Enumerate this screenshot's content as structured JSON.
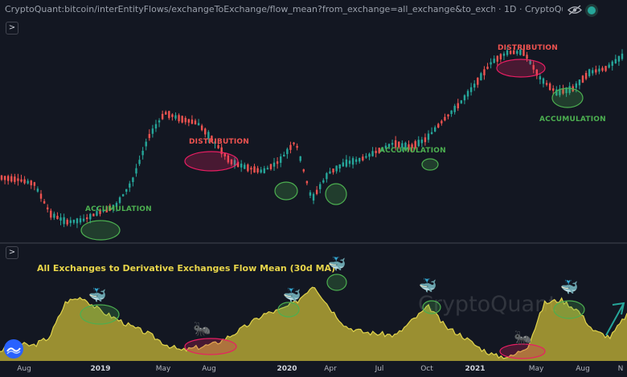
{
  "header": {
    "symbol": "CryptoQuant:bitcoin/interEntityFlows/exchangeToExchange/flow_mean?from_exchange=all_exchange&to_exchange=...",
    "interval_source": "· 1D · CryptoQu",
    "eye_icon": "eye-off-icon",
    "status_color": "#26a69a"
  },
  "panels": {
    "top_toggle": ">",
    "bottom_toggle": ">"
  },
  "annotations": {
    "accumulation_1": "ACCUMULATION",
    "distribution_1": "DISTRIBUTION",
    "accumulation_2": "ACCUMULATION",
    "distribution_2": "DISTRIBUTION",
    "accumulation_3": "ACCUMULATION"
  },
  "indicator": {
    "title": "All Exchanges to Derivative Exchanges Flow Mean (30d MA)",
    "watermark": "CryptoQuant",
    "whale_emoji": "🐳",
    "ant_emoji": "🐜",
    "colors": {
      "fill": "#b3a534",
      "line": "#e1d44c",
      "bull": "#26a69a",
      "bear": "#ef5350",
      "green_mark": "#4caf50",
      "red_mark": "#e91e63"
    }
  },
  "time_axis": {
    "ticks": [
      "Aug",
      "2019",
      "May",
      "Aug",
      "2020",
      "Apr",
      "Jul",
      "Oct",
      "2021",
      "May",
      "Aug",
      "N"
    ]
  },
  "chart_data": [
    {
      "type": "candlestick",
      "title": "",
      "x": [
        "2018-08",
        "2018-09",
        "2018-10",
        "2018-11",
        "2018-12",
        "2019-01",
        "2019-02",
        "2019-03",
        "2019-04",
        "2019-05",
        "2019-06",
        "2019-07",
        "2019-08",
        "2019-09",
        "2019-10",
        "2019-11",
        "2019-12",
        "2020-01",
        "2020-02",
        "2020-03",
        "2020-04",
        "2020-05",
        "2020-06",
        "2020-07",
        "2020-08",
        "2020-09",
        "2020-10",
        "2020-11",
        "2020-12",
        "2021-01",
        "2021-02",
        "2021-03",
        "2021-04",
        "2021-05",
        "2021-06",
        "2021-07",
        "2021-08",
        "2021-09",
        "2021-10"
      ],
      "relative_level": [
        0.28,
        0.27,
        0.25,
        0.1,
        0.06,
        0.07,
        0.11,
        0.14,
        0.26,
        0.48,
        0.6,
        0.57,
        0.55,
        0.46,
        0.36,
        0.33,
        0.31,
        0.36,
        0.46,
        0.17,
        0.3,
        0.35,
        0.37,
        0.41,
        0.45,
        0.43,
        0.47,
        0.56,
        0.64,
        0.74,
        0.85,
        0.9,
        0.9,
        0.77,
        0.7,
        0.72,
        0.8,
        0.82,
        0.88
      ],
      "legend": "none",
      "grid": false
    },
    {
      "type": "area",
      "title": "All Exchanges to Derivative Exchanges Flow Mean (30d MA)",
      "x": [
        "2018-08",
        "2018-09",
        "2018-10",
        "2018-11",
        "2018-12",
        "2019-01",
        "2019-02",
        "2019-03",
        "2019-04",
        "2019-05",
        "2019-06",
        "2019-07",
        "2019-08",
        "2019-09",
        "2019-10",
        "2019-11",
        "2019-12",
        "2020-01",
        "2020-02",
        "2020-03",
        "2020-04",
        "2020-05",
        "2020-06",
        "2020-07",
        "2020-08",
        "2020-09",
        "2020-10",
        "2020-11",
        "2020-12",
        "2021-01",
        "2021-02",
        "2021-03",
        "2021-04",
        "2021-05",
        "2021-06",
        "2021-07",
        "2021-08",
        "2021-09",
        "2021-10"
      ],
      "relative_level": [
        0.12,
        0.2,
        0.18,
        0.28,
        0.7,
        0.75,
        0.6,
        0.5,
        0.4,
        0.32,
        0.2,
        0.12,
        0.16,
        0.2,
        0.3,
        0.42,
        0.55,
        0.6,
        0.7,
        0.9,
        0.62,
        0.4,
        0.34,
        0.32,
        0.3,
        0.48,
        0.64,
        0.4,
        0.3,
        0.16,
        0.06,
        0.05,
        0.18,
        0.68,
        0.72,
        0.6,
        0.35,
        0.28,
        0.55
      ],
      "legend": "none",
      "grid": false
    }
  ]
}
